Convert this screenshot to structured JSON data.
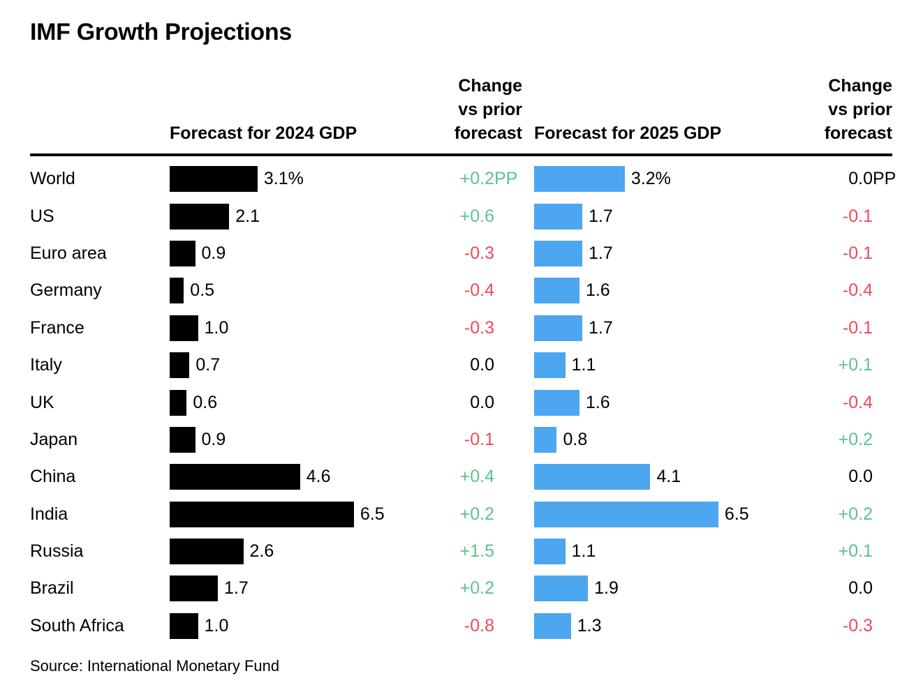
{
  "title": "IMF Growth Projections",
  "headers": {
    "forecast_2024": "Forecast for 2024 GDP",
    "change_2024": [
      "Change",
      "vs prior",
      "forecast"
    ],
    "forecast_2025": "Forecast for 2025 GDP",
    "change_2025": [
      "Change",
      "vs prior",
      "forecast"
    ]
  },
  "source": "Source: International Monetary Fund",
  "colors": {
    "bar_2024": "#000000",
    "bar_2025": "#4DA6F0",
    "positive": "#5BC48C",
    "negative": "#F0495A",
    "neutral": "#000000",
    "rule": "#000000"
  },
  "rows": [
    {
      "label": "World",
      "f2024": 3.1,
      "f2024_text": "3.1%",
      "c2024": "+0.2",
      "c2024_unit": "PP",
      "f2025": 3.2,
      "f2025_text": "3.2%",
      "c2025": "0.0",
      "c2025_unit": "PP"
    },
    {
      "label": "US",
      "f2024": 2.1,
      "f2024_text": "2.1",
      "c2024": "+0.6",
      "c2024_unit": "",
      "f2025": 1.7,
      "f2025_text": "1.7",
      "c2025": "-0.1",
      "c2025_unit": ""
    },
    {
      "label": "Euro area",
      "f2024": 0.9,
      "f2024_text": "0.9",
      "c2024": "-0.3",
      "c2024_unit": "",
      "f2025": 1.7,
      "f2025_text": "1.7",
      "c2025": "-0.1",
      "c2025_unit": ""
    },
    {
      "label": "Germany",
      "f2024": 0.5,
      "f2024_text": "0.5",
      "c2024": "-0.4",
      "c2024_unit": "",
      "f2025": 1.6,
      "f2025_text": "1.6",
      "c2025": "-0.4",
      "c2025_unit": ""
    },
    {
      "label": "France",
      "f2024": 1.0,
      "f2024_text": "1.0",
      "c2024": "-0.3",
      "c2024_unit": "",
      "f2025": 1.7,
      "f2025_text": "1.7",
      "c2025": "-0.1",
      "c2025_unit": ""
    },
    {
      "label": "Italy",
      "f2024": 0.7,
      "f2024_text": "0.7",
      "c2024": "0.0",
      "c2024_unit": "",
      "f2025": 1.1,
      "f2025_text": "1.1",
      "c2025": "+0.1",
      "c2025_unit": ""
    },
    {
      "label": "UK",
      "f2024": 0.6,
      "f2024_text": "0.6",
      "c2024": "0.0",
      "c2024_unit": "",
      "f2025": 1.6,
      "f2025_text": "1.6",
      "c2025": "-0.4",
      "c2025_unit": ""
    },
    {
      "label": "Japan",
      "f2024": 0.9,
      "f2024_text": "0.9",
      "c2024": "-0.1",
      "c2024_unit": "",
      "f2025": 0.8,
      "f2025_text": "0.8",
      "c2025": "+0.2",
      "c2025_unit": ""
    },
    {
      "label": "China",
      "f2024": 4.6,
      "f2024_text": "4.6",
      "c2024": "+0.4",
      "c2024_unit": "",
      "f2025": 4.1,
      "f2025_text": "4.1",
      "c2025": "0.0",
      "c2025_unit": ""
    },
    {
      "label": "India",
      "f2024": 6.5,
      "f2024_text": "6.5",
      "c2024": "+0.2",
      "c2024_unit": "",
      "f2025": 6.5,
      "f2025_text": "6.5",
      "c2025": "+0.2",
      "c2025_unit": ""
    },
    {
      "label": "Russia",
      "f2024": 2.6,
      "f2024_text": "2.6",
      "c2024": "+1.5",
      "c2024_unit": "",
      "f2025": 1.1,
      "f2025_text": "1.1",
      "c2025": "+0.1",
      "c2025_unit": ""
    },
    {
      "label": "Brazil",
      "f2024": 1.7,
      "f2024_text": "1.7",
      "c2024": "+0.2",
      "c2024_unit": "",
      "f2025": 1.9,
      "f2025_text": "1.9",
      "c2025": "0.0",
      "c2025_unit": ""
    },
    {
      "label": "South Africa",
      "f2024": 1.0,
      "f2024_text": "1.0",
      "c2024": "-0.8",
      "c2024_unit": "",
      "f2025": 1.3,
      "f2025_text": "1.3",
      "c2025": "-0.3",
      "c2025_unit": ""
    }
  ],
  "chart_data": {
    "type": "bar",
    "title": "IMF Growth Projections",
    "orientation": "horizontal",
    "categories": [
      "World",
      "US",
      "Euro area",
      "Germany",
      "France",
      "Italy",
      "UK",
      "Japan",
      "China",
      "India",
      "Russia",
      "Brazil",
      "South Africa"
    ],
    "series": [
      {
        "name": "Forecast for 2024 GDP",
        "unit": "%",
        "color": "#000000",
        "values": [
          3.1,
          2.1,
          0.9,
          0.5,
          1.0,
          0.7,
          0.6,
          0.9,
          4.6,
          6.5,
          2.6,
          1.7,
          1.0
        ]
      },
      {
        "name": "Change vs prior forecast (2024)",
        "unit": "PP",
        "values": [
          0.2,
          0.6,
          -0.3,
          -0.4,
          -0.3,
          0.0,
          0.0,
          -0.1,
          0.4,
          0.2,
          1.5,
          0.2,
          -0.8
        ]
      },
      {
        "name": "Forecast for 2025 GDP",
        "unit": "%",
        "color": "#4DA6F0",
        "values": [
          3.2,
          1.7,
          1.7,
          1.6,
          1.7,
          1.1,
          1.6,
          0.8,
          4.1,
          6.5,
          1.1,
          1.9,
          1.3
        ]
      },
      {
        "name": "Change vs prior forecast (2025)",
        "unit": "PP",
        "values": [
          0.0,
          -0.1,
          -0.1,
          -0.4,
          -0.1,
          0.1,
          -0.4,
          0.2,
          0.0,
          0.2,
          0.1,
          0.0,
          -0.3
        ]
      }
    ],
    "value_labels": true,
    "grid": false,
    "legend": false,
    "xlim": [
      0,
      7
    ],
    "source": "Source: International Monetary Fund"
  }
}
